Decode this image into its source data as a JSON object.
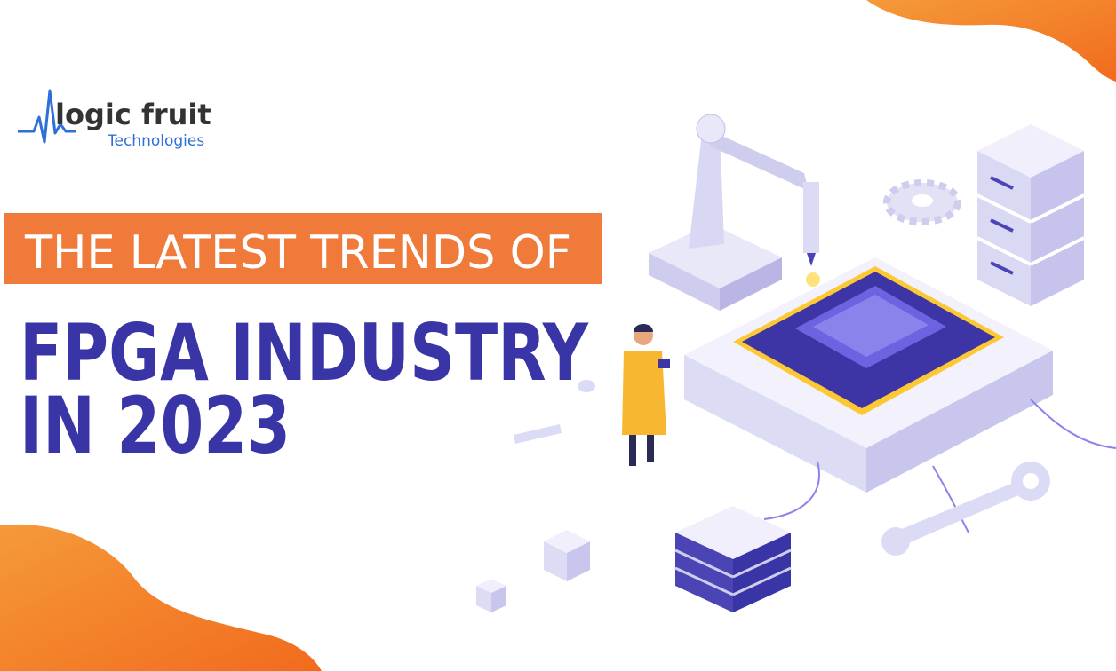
{
  "logo": {
    "name": "logic fruit",
    "tagline": "Technologies"
  },
  "banner": {
    "kicker": "THE LATEST TRENDS OF",
    "title_line1": "FPGA INDUSTRY",
    "title_line2": "IN 2023"
  }
}
